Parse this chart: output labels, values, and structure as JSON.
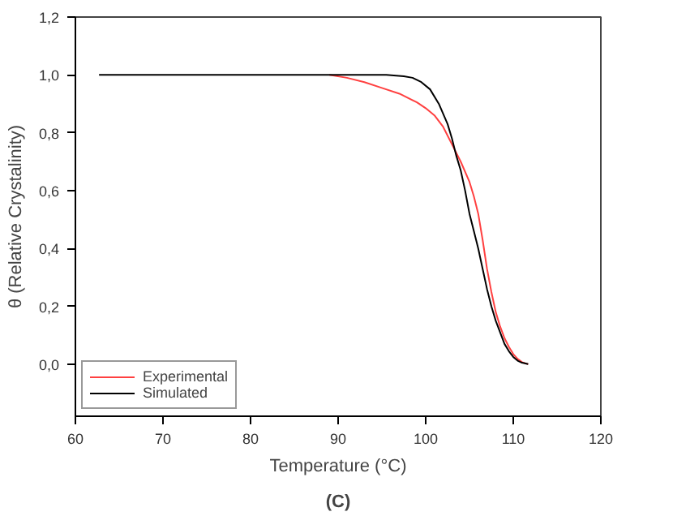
{
  "chart_data": {
    "type": "line",
    "xlabel": "Temperature (°C)",
    "ylabel": "θ (Relative Crystalinity)",
    "annotations": [
      "(C)"
    ],
    "xlim": [
      60,
      120
    ],
    "xticks": [
      60,
      70,
      80,
      90,
      100,
      110,
      120
    ],
    "ylim": [
      -0.18,
      1.2
    ],
    "yticks": [
      {
        "value": 0.0,
        "label": "0,0"
      },
      {
        "value": 0.2,
        "label": "0,2"
      },
      {
        "value": 0.4,
        "label": "0,4"
      },
      {
        "value": 0.6,
        "label": "0,6"
      },
      {
        "value": 0.8,
        "label": "0,8"
      },
      {
        "value": 1.0,
        "label": "1,0"
      },
      {
        "value": 1.2,
        "label": "1,2"
      }
    ],
    "grid": false,
    "legend": "bottom left",
    "line_style": "solid",
    "marker": "none",
    "series": [
      {
        "name": "Experimental",
        "color": "#ff4040",
        "x": [
          89,
          91,
          93,
          95,
          97,
          99,
          100,
          101,
          102,
          103,
          104,
          105,
          105.5,
          106,
          106.5,
          107,
          107.5,
          108,
          108.5,
          109,
          109.5,
          110,
          110.5,
          111,
          111.7
        ],
        "values": [
          1.0,
          0.99,
          0.975,
          0.955,
          0.935,
          0.905,
          0.885,
          0.86,
          0.82,
          0.76,
          0.7,
          0.63,
          0.58,
          0.52,
          0.43,
          0.33,
          0.25,
          0.18,
          0.13,
          0.09,
          0.06,
          0.035,
          0.018,
          0.007,
          0.0
        ]
      },
      {
        "name": "Simulated",
        "color": "#000000",
        "x": [
          62.7,
          90,
          95.5,
          97.5,
          98.5,
          99.5,
          100.5,
          101.5,
          102.5,
          103,
          103.5,
          104,
          104.5,
          105,
          105.5,
          106,
          106.5,
          107,
          107.5,
          108,
          108.5,
          109,
          109.5,
          110,
          110.5,
          111,
          111.7
        ],
        "values": [
          1.0,
          1.0,
          1.0,
          0.995,
          0.99,
          0.975,
          0.95,
          0.9,
          0.83,
          0.78,
          0.72,
          0.67,
          0.6,
          0.52,
          0.46,
          0.4,
          0.33,
          0.26,
          0.2,
          0.15,
          0.11,
          0.07,
          0.045,
          0.025,
          0.012,
          0.005,
          0.0
        ]
      }
    ]
  }
}
